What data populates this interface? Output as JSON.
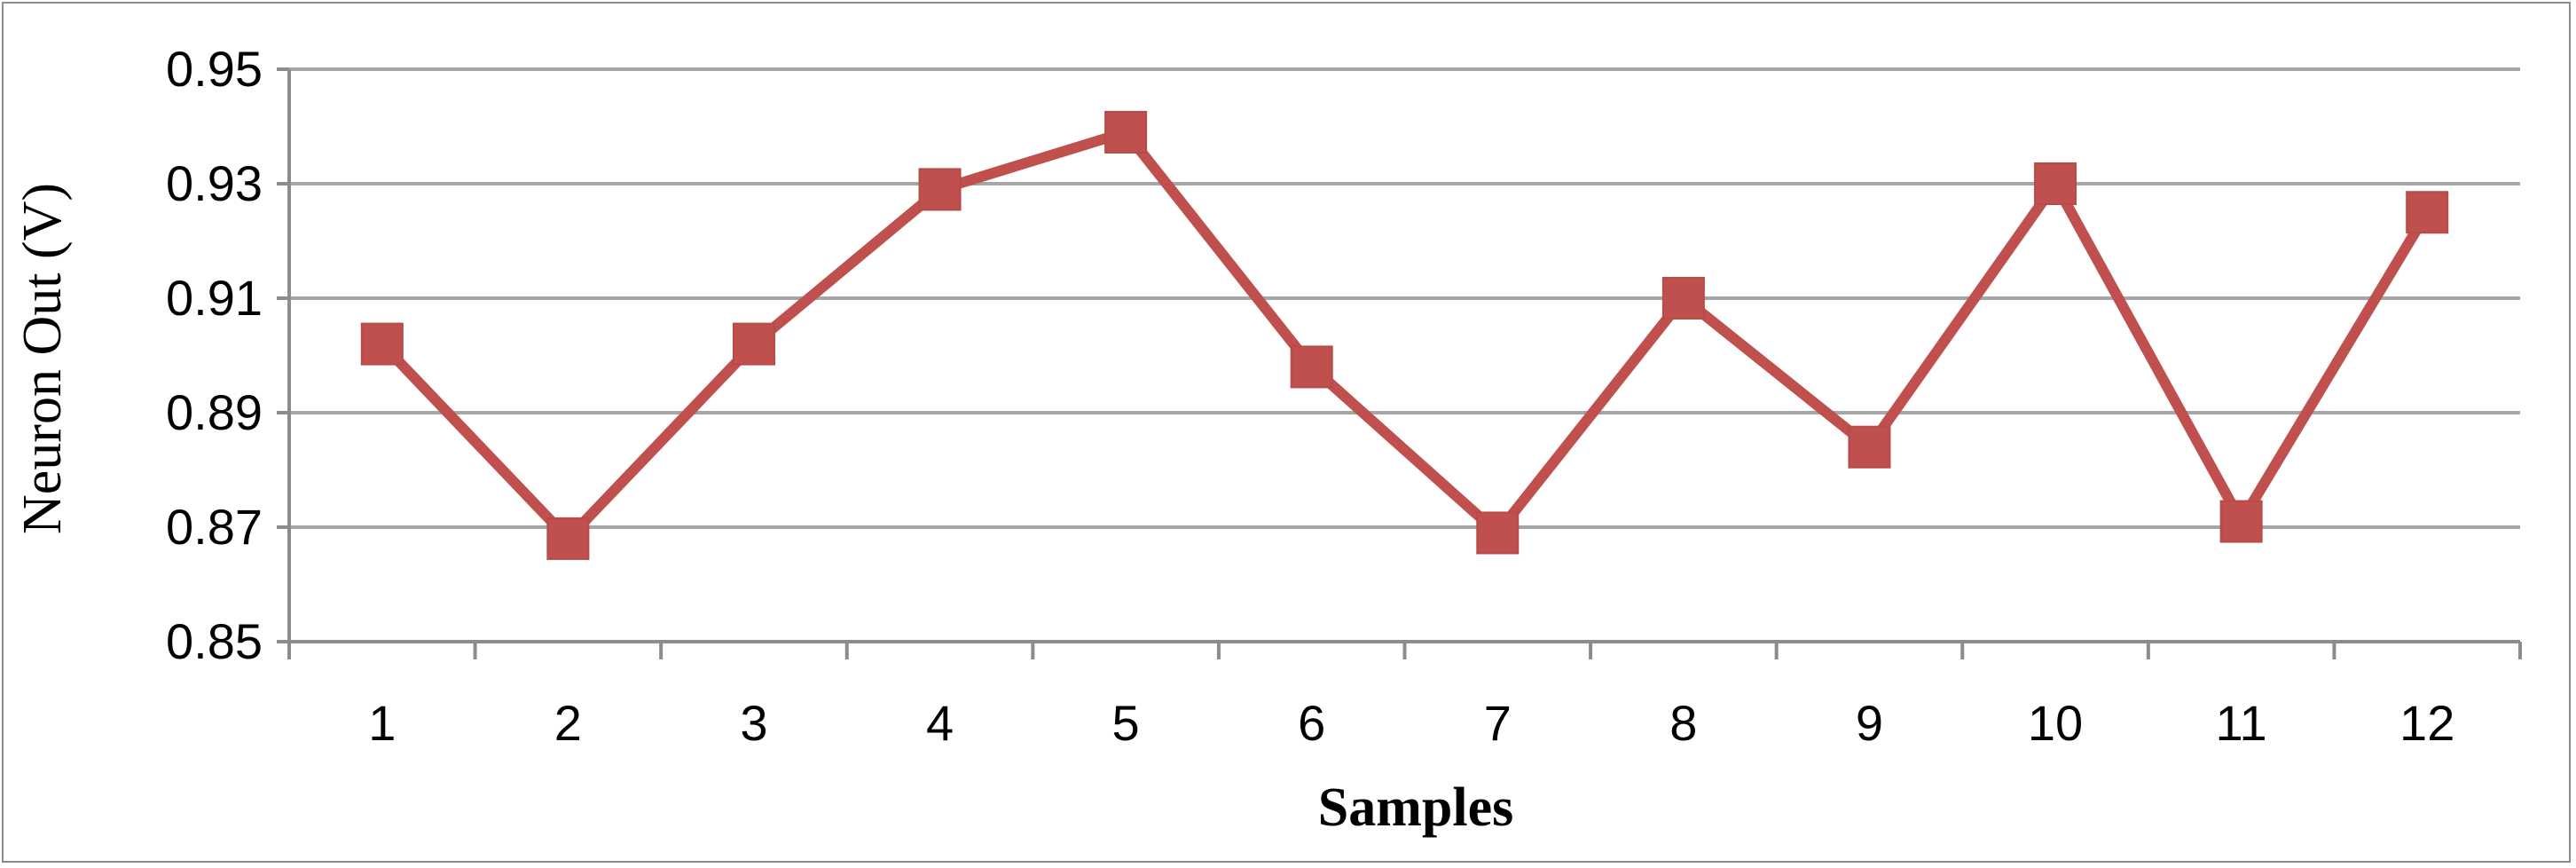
{
  "chart_data": {
    "type": "line",
    "title": "",
    "xlabel": "Samples",
    "ylabel": "Neuron Out (V)",
    "categories": [
      "1",
      "2",
      "3",
      "4",
      "5",
      "6",
      "7",
      "8",
      "9",
      "10",
      "11",
      "12"
    ],
    "series": [
      {
        "values": [
          0.902,
          0.868,
          0.902,
          0.929,
          0.939,
          0.898,
          0.869,
          0.91,
          0.884,
          0.93,
          0.871,
          0.925
        ],
        "color": "#c0504d",
        "marker": "square"
      }
    ],
    "ylim": [
      0.85,
      0.95
    ],
    "yticks": [
      "0.85",
      "0.87",
      "0.89",
      "0.91",
      "0.93",
      "0.95"
    ],
    "grid": "horizontal",
    "legend": "none",
    "colors": {
      "gridline": "#a6a6a6",
      "axis": "#8c8c8c",
      "border": "#8c8c8c"
    }
  }
}
